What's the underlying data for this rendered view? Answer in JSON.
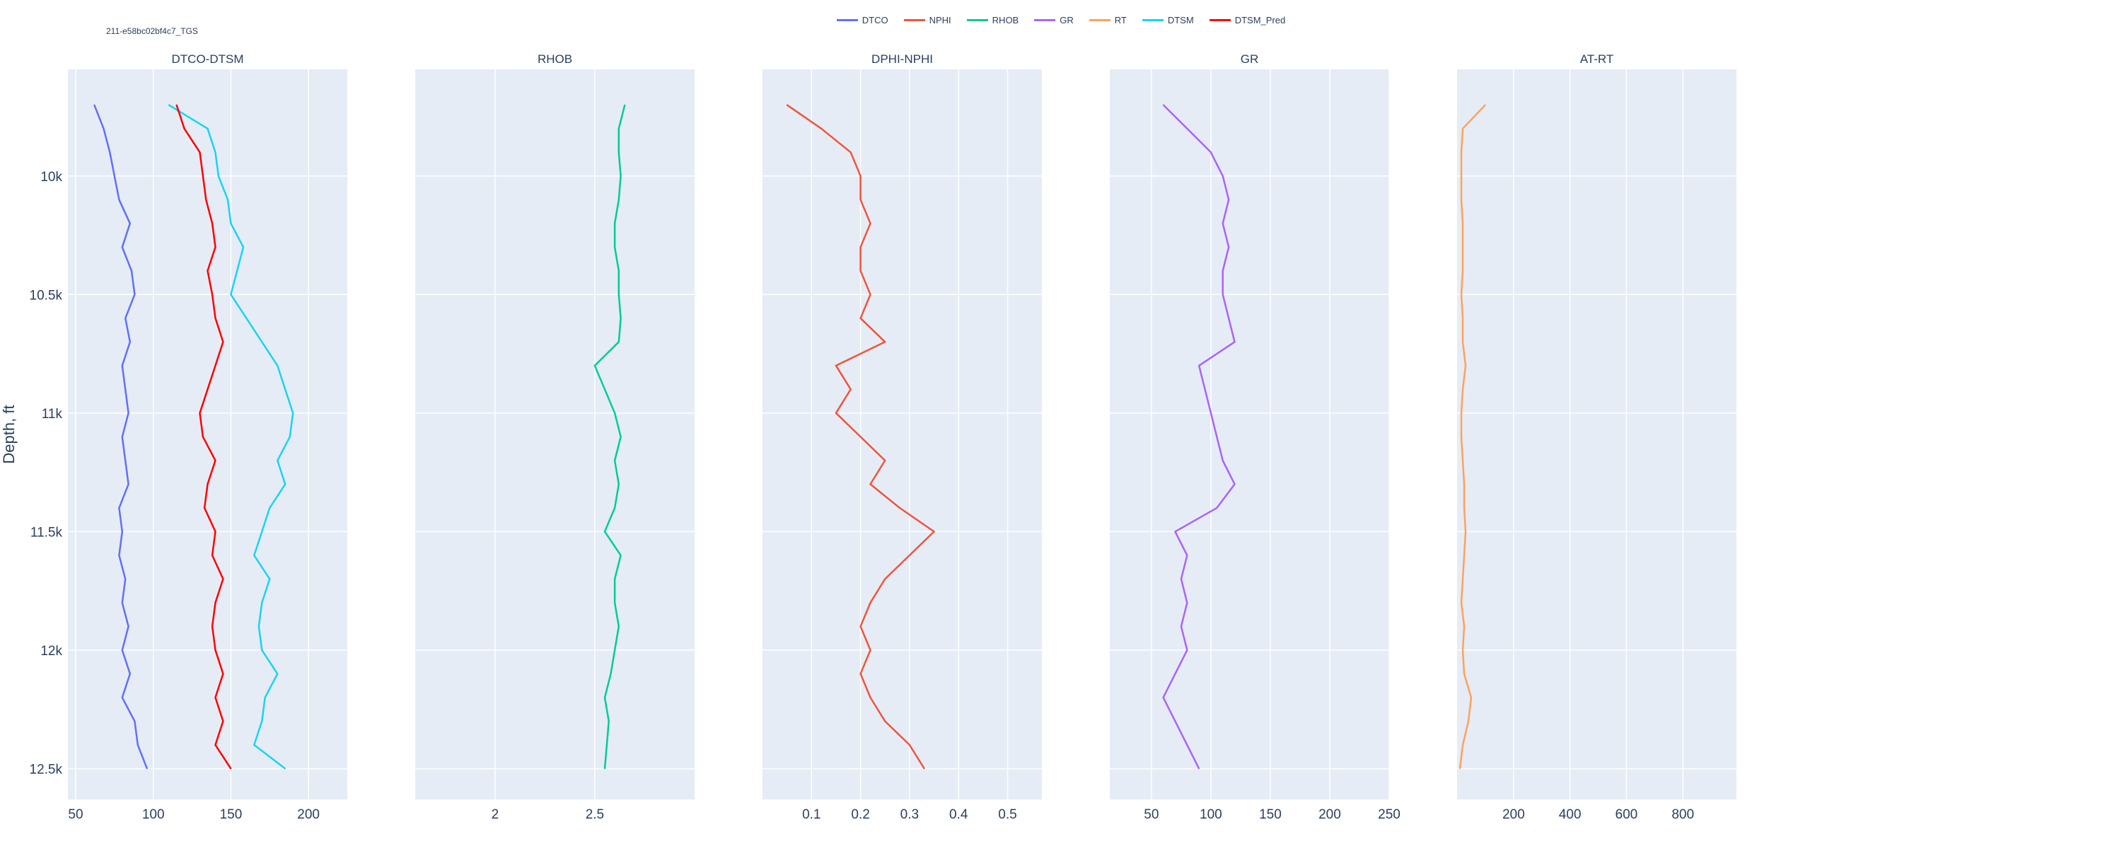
{
  "figure_id": "211-e58bc02bf4c7_TGS",
  "legend": [
    {
      "name": "DTCO",
      "color": "#636efa"
    },
    {
      "name": "NPHI",
      "color": "#EF553B"
    },
    {
      "name": "RHOB",
      "color": "#00cc96"
    },
    {
      "name": "GR",
      "color": "#ab63fa"
    },
    {
      "name": "RT",
      "color": "#FFA15A"
    },
    {
      "name": "DTSM",
      "color": "#19d3f3"
    },
    {
      "name": "DTSM_Pred",
      "color": "#FF0000"
    }
  ],
  "chart_data": {
    "type": "line",
    "layout": "well-log tracks sharing a reversed depth axis",
    "shared_y": {
      "label": "Depth, ft",
      "range": [
        12630,
        9550
      ],
      "reversed": true,
      "ticks": [
        10000,
        10500,
        11000,
        11500,
        12000,
        12500
      ],
      "tick_labels": [
        "10k",
        "10.5k",
        "11k",
        "11.5k",
        "12k",
        "12.5k"
      ]
    },
    "depth": [
      9700,
      9800,
      9900,
      10000,
      10100,
      10200,
      10300,
      10400,
      10500,
      10600,
      10700,
      10800,
      10900,
      11000,
      11100,
      11200,
      11300,
      11400,
      11500,
      11600,
      11700,
      11800,
      11900,
      12000,
      12100,
      12200,
      12300,
      12400,
      12500
    ],
    "tracks": [
      {
        "title": "DTCO-DTSM",
        "xlim": [
          45,
          225
        ],
        "x_ticks": [
          50,
          100,
          150,
          200
        ],
        "grid": true,
        "series": [
          {
            "name": "DTCO",
            "color": "#636efa",
            "values": [
              62,
              68,
              72,
              75,
              78,
              85,
              80,
              86,
              88,
              82,
              85,
              80,
              82,
              84,
              80,
              82,
              84,
              78,
              80,
              78,
              82,
              80,
              84,
              80,
              85,
              80,
              88,
              90,
              96
            ]
          },
          {
            "name": "DTSM",
            "color": "#19d3f3",
            "values": [
              110,
              135,
              140,
              142,
              148,
              150,
              158,
              154,
              150,
              160,
              170,
              180,
              185,
              190,
              188,
              180,
              185,
              175,
              170,
              165,
              175,
              170,
              168,
              170,
              180,
              172,
              170,
              165,
              185
            ]
          },
          {
            "name": "DTSM_Pred",
            "color": "#FF0000",
            "values": [
              115,
              120,
              130,
              132,
              134,
              138,
              140,
              135,
              138,
              140,
              145,
              140,
              135,
              130,
              132,
              140,
              135,
              133,
              140,
              138,
              145,
              140,
              138,
              140,
              145,
              140,
              145,
              140,
              150
            ]
          }
        ]
      },
      {
        "title": "RHOB",
        "xlim": [
          1.6,
          3.0
        ],
        "x_ticks": [
          2,
          2.5
        ],
        "x_tick_labels": [
          "2",
          "2.5"
        ],
        "grid": true,
        "series": [
          {
            "name": "RHOB",
            "color": "#00cc96",
            "values": [
              2.65,
              2.62,
              2.62,
              2.63,
              2.62,
              2.6,
              2.6,
              2.62,
              2.62,
              2.63,
              2.62,
              2.5,
              2.55,
              2.6,
              2.63,
              2.6,
              2.62,
              2.6,
              2.55,
              2.63,
              2.6,
              2.6,
              2.62,
              2.6,
              2.58,
              2.55,
              2.57,
              2.56,
              2.55
            ]
          }
        ]
      },
      {
        "title": "DPHI-NPHI",
        "xlim": [
          0,
          0.57
        ],
        "x_ticks": [
          0.1,
          0.2,
          0.3,
          0.4,
          0.5
        ],
        "x_tick_labels": [
          "0.1",
          "0.2",
          "0.3",
          "0.4",
          "0.5"
        ],
        "grid": true,
        "series": [
          {
            "name": "NPHI",
            "color": "#EF553B",
            "values": [
              0.05,
              0.12,
              0.18,
              0.2,
              0.2,
              0.22,
              0.2,
              0.2,
              0.22,
              0.2,
              0.25,
              0.15,
              0.18,
              0.15,
              0.2,
              0.25,
              0.22,
              0.28,
              0.35,
              0.3,
              0.25,
              0.22,
              0.2,
              0.22,
              0.2,
              0.22,
              0.25,
              0.3,
              0.33
            ]
          }
        ]
      },
      {
        "title": "GR",
        "xlim": [
          15,
          250
        ],
        "x_ticks": [
          50,
          100,
          150,
          200,
          250
        ],
        "grid": true,
        "series": [
          {
            "name": "GR",
            "color": "#ab63fa",
            "values": [
              60,
              80,
              100,
              110,
              115,
              110,
              115,
              110,
              110,
              115,
              120,
              90,
              95,
              100,
              105,
              110,
              120,
              105,
              70,
              80,
              75,
              80,
              75,
              80,
              70,
              60,
              70,
              80,
              90
            ]
          }
        ]
      },
      {
        "title": "AT-RT",
        "xlim": [
          0,
          990
        ],
        "x_ticks": [
          200,
          400,
          600,
          800
        ],
        "grid": true,
        "series": [
          {
            "name": "RT",
            "color": "#FFA15A",
            "values": [
              100,
              20,
              15,
              15,
              15,
              20,
              20,
              20,
              15,
              20,
              20,
              30,
              20,
              15,
              15,
              20,
              25,
              25,
              30,
              25,
              20,
              15,
              25,
              20,
              25,
              50,
              40,
              20,
              10
            ]
          }
        ]
      }
    ]
  }
}
